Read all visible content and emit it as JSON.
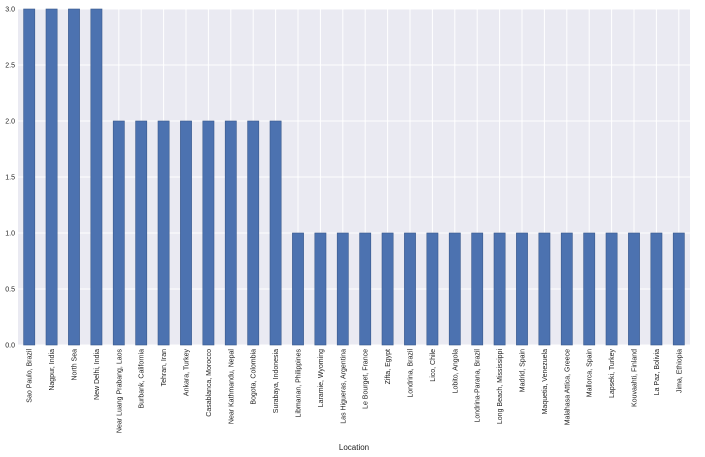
{
  "chart_data": {
    "type": "bar",
    "xlabel": "Location",
    "ylabel": "",
    "ylim": [
      0,
      3
    ],
    "yticks": [
      0.0,
      0.5,
      1.0,
      1.5,
      2.0,
      2.5,
      3.0
    ],
    "grid": true,
    "categories": [
      "Sao Paulo, Brazil",
      "Nagpur, India",
      "North Sea",
      "New Delhi, India",
      "Near Luang Prabang, Laos",
      "Burbank, California",
      "Tehran, Iran",
      "Ankara, Turkey",
      "Casablanca, Morocco",
      "Near Kathmandu, Nepal",
      "Bogota, Colombia",
      "Surabaya, Indonesia",
      "Libmanan, Philippines",
      "Laramie, Wyoming",
      "Las Higueras, Argentina",
      "Le Bourget, France",
      "Zifta, Egypt",
      "Londrina, Brazil",
      "Lico, Chile",
      "Lobito, Angola",
      "Londrina-Parana, Brazil",
      "Long Beach, Mississippi",
      "Madrid, Spain",
      "Maquetia, Venezuela",
      "Malahasa Attica, Greece",
      "Mallorca, Spain",
      "Lapseki, Turkey",
      "Kouvaahti, Finland",
      "La Paz, Bolivia",
      "Jima, Ethiopia"
    ],
    "values": [
      3,
      3,
      3,
      3,
      2,
      2,
      2,
      2,
      2,
      2,
      2,
      2,
      1,
      1,
      1,
      1,
      1,
      1,
      1,
      1,
      1,
      1,
      1,
      1,
      1,
      1,
      1,
      1,
      1,
      1
    ],
    "colors": {
      "bar": "#4c72b0",
      "bar_edge": "#3b5a8c",
      "plot_background": "#eaeaf2",
      "grid": "#ffffff",
      "text": "#222222"
    }
  }
}
